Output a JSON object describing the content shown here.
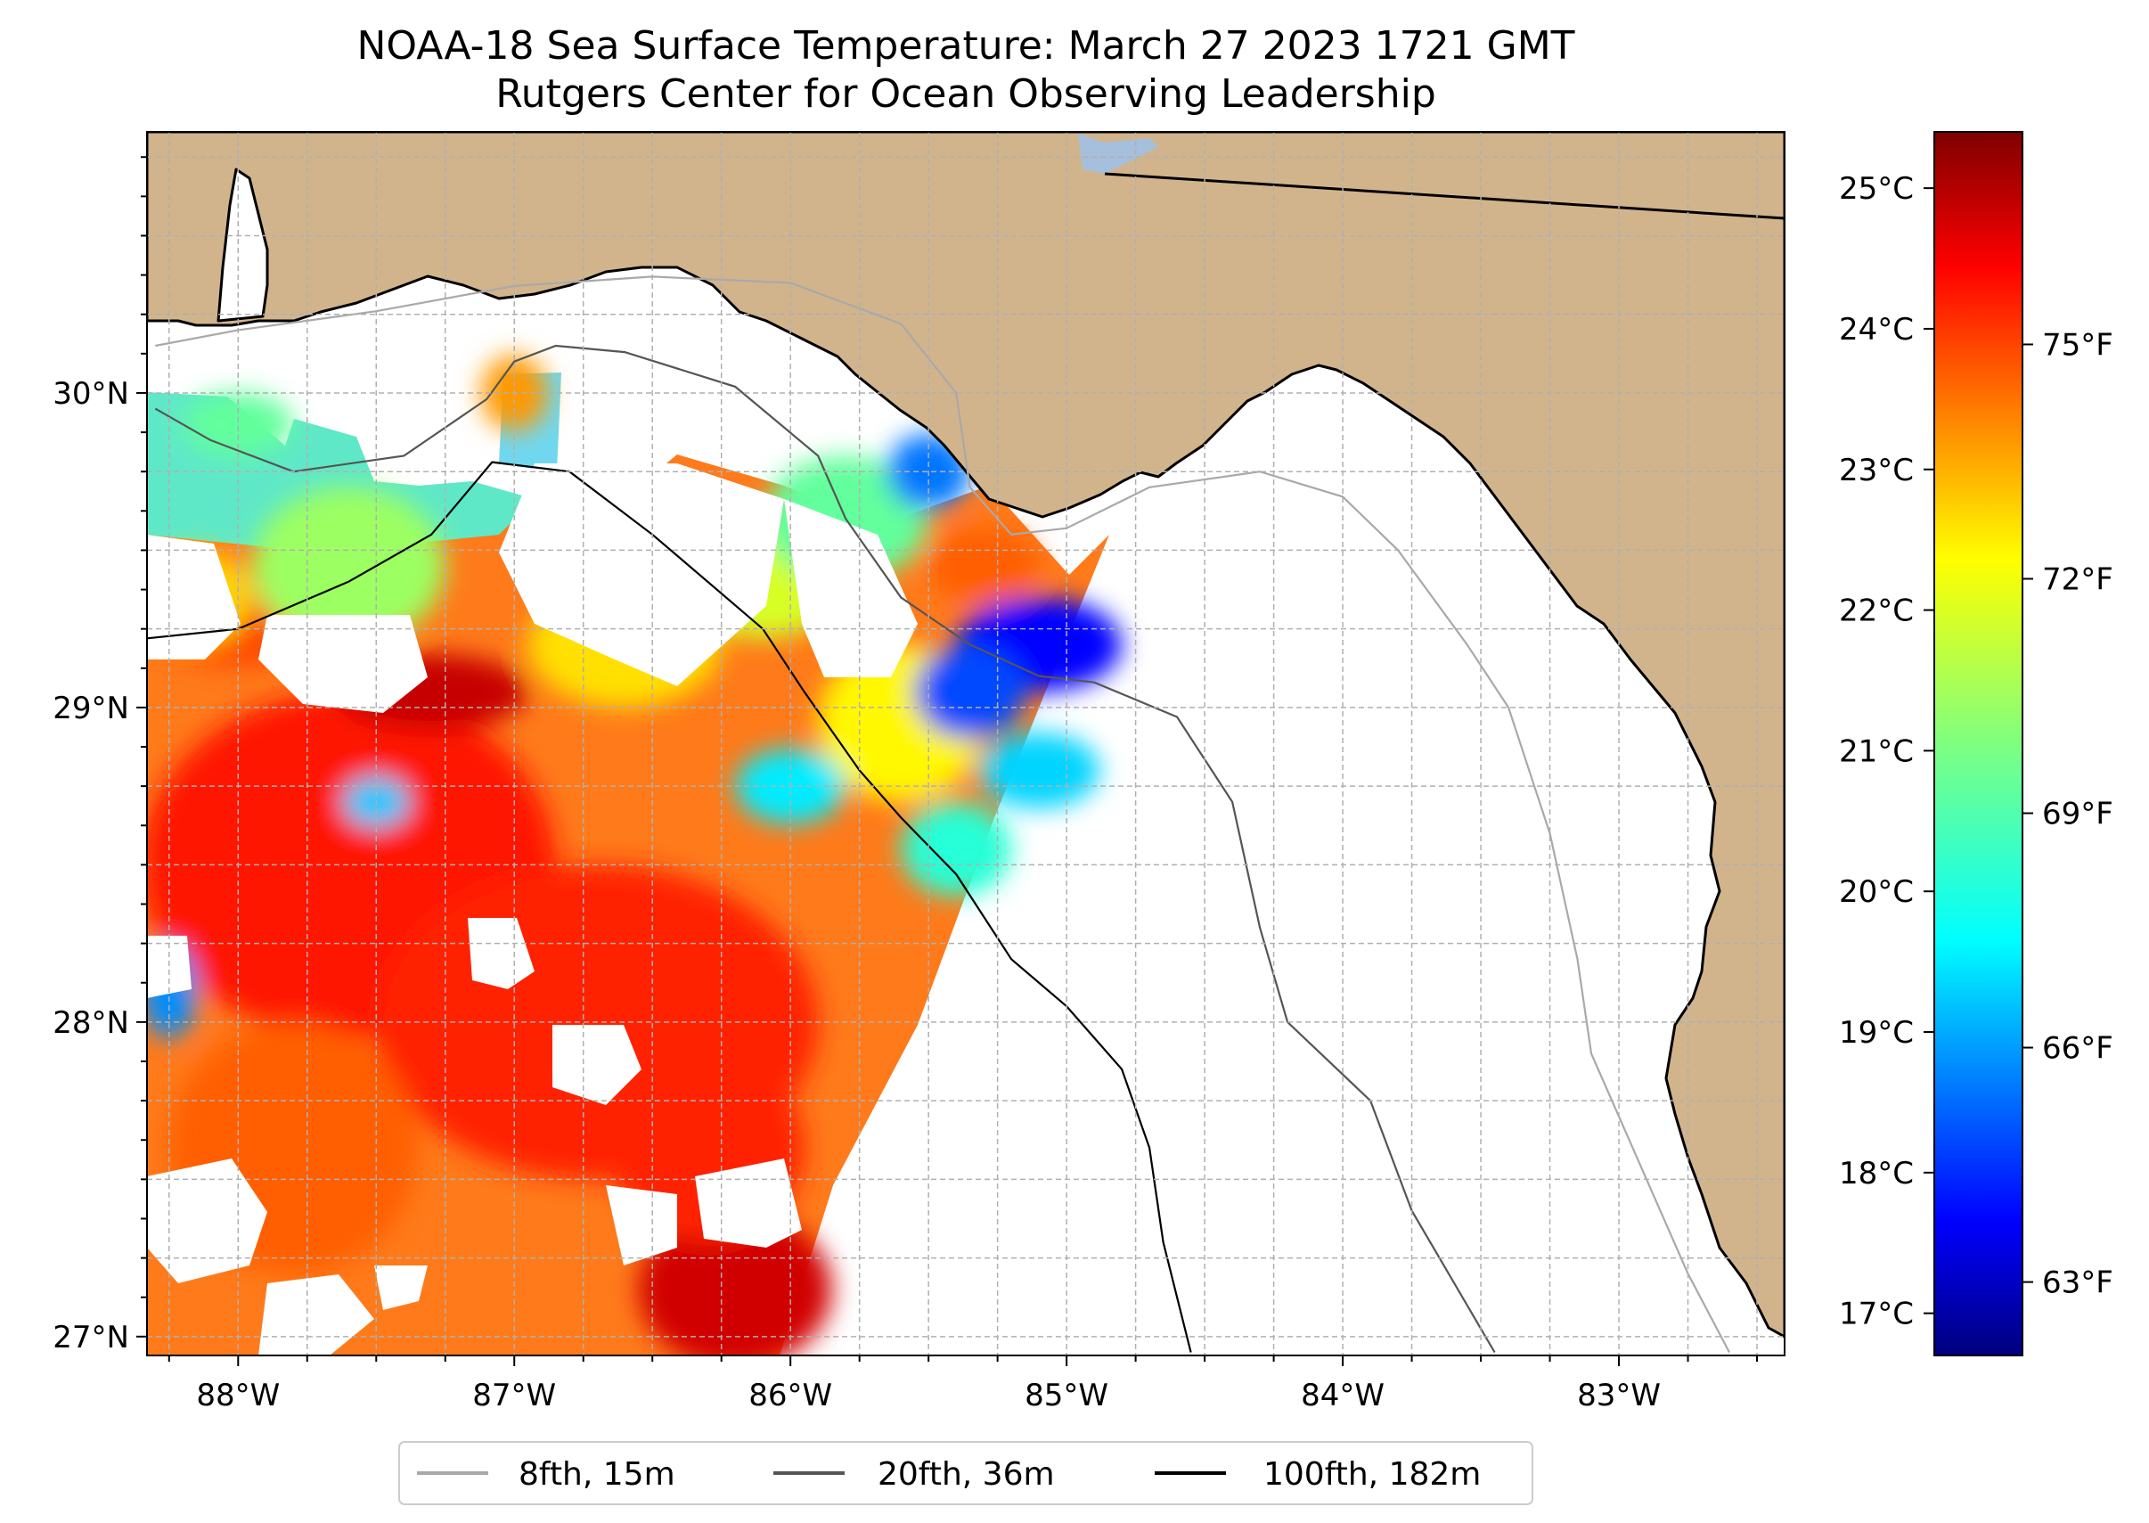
{
  "title": {
    "line1": "NOAA-18 Sea Surface Temperature: March 27 2023 1721 GMT",
    "line2": "Rutgers Center for Ocean Observing Leadership"
  },
  "colors": {
    "land": "#d2b48c",
    "ocean": "#ffffff",
    "lake": "#a5bfdd",
    "grid": "#b0b0b0",
    "isobath_8fth": "#a9a9a9",
    "isobath_20fth": "#555555",
    "isobath_100fth": "#000000",
    "colormap": [
      "#00007f",
      "#0000ff",
      "#007fff",
      "#00ffff",
      "#7fff7f",
      "#ffff00",
      "#ff7f00",
      "#ff0000",
      "#7f0000"
    ]
  },
  "chart_data": {
    "type": "heatmap",
    "title": "NOAA-18 Sea Surface Temperature: March 27 2023 1721 GMT",
    "subtitle": "Rutgers Center for Ocean Observing Leadership",
    "variable": "sea surface temperature",
    "xlim": [
      -88.33,
      -82.4
    ],
    "ylim": [
      26.94,
      30.83
    ],
    "x_ticks": [
      {
        "value": -88,
        "label": "88°W"
      },
      {
        "value": -87,
        "label": "87°W"
      },
      {
        "value": -86,
        "label": "86°W"
      },
      {
        "value": -85,
        "label": "85°W"
      },
      {
        "value": -84,
        "label": "84°W"
      },
      {
        "value": -83,
        "label": "83°W"
      }
    ],
    "y_ticks": [
      {
        "value": 27,
        "label": "27°N"
      },
      {
        "value": 28,
        "label": "28°N"
      },
      {
        "value": 29,
        "label": "29°N"
      },
      {
        "value": 30,
        "label": "30°N"
      }
    ],
    "grid": true,
    "colorbar": {
      "celsius_range": [
        16.7,
        25.4
      ],
      "celsius_ticks": [
        {
          "value": 17,
          "label": "17°C"
        },
        {
          "value": 18,
          "label": "18°C"
        },
        {
          "value": 19,
          "label": "19°C"
        },
        {
          "value": 20,
          "label": "20°C"
        },
        {
          "value": 21,
          "label": "21°C"
        },
        {
          "value": 22,
          "label": "22°C"
        },
        {
          "value": 23,
          "label": "23°C"
        },
        {
          "value": 24,
          "label": "24°C"
        },
        {
          "value": 25,
          "label": "25°C"
        }
      ],
      "fahrenheit_ticks": [
        {
          "value": 63,
          "label": "63°F"
        },
        {
          "value": 66,
          "label": "66°F"
        },
        {
          "value": 69,
          "label": "69°F"
        },
        {
          "value": 72,
          "label": "72°F"
        },
        {
          "value": 75,
          "label": "75°F"
        }
      ]
    },
    "legend": {
      "placement": "bottom-center",
      "entries": [
        {
          "label": "8fth, 15m",
          "color": "#a9a9a9"
        },
        {
          "label": "20fth, 36m",
          "color": "#555555"
        },
        {
          "label": "100fth, 182m",
          "color": "#000000"
        }
      ]
    },
    "isobaths": [
      {
        "name": "8fth, 15m",
        "points": [
          [
            -88.3,
            30.15
          ],
          [
            -88.0,
            30.2
          ],
          [
            -87.5,
            30.26
          ],
          [
            -87.0,
            30.34
          ],
          [
            -86.5,
            30.37
          ],
          [
            -86.0,
            30.35
          ],
          [
            -85.6,
            30.22
          ],
          [
            -85.4,
            30.0
          ],
          [
            -85.35,
            29.7
          ],
          [
            -85.2,
            29.55
          ],
          [
            -85.0,
            29.57
          ],
          [
            -84.7,
            29.7
          ],
          [
            -84.3,
            29.75
          ],
          [
            -84.0,
            29.67
          ],
          [
            -83.8,
            29.5
          ],
          [
            -83.55,
            29.2
          ],
          [
            -83.4,
            29.0
          ],
          [
            -83.25,
            28.6
          ],
          [
            -83.15,
            28.2
          ],
          [
            -83.1,
            27.9
          ],
          [
            -82.9,
            27.5
          ],
          [
            -82.75,
            27.2
          ],
          [
            -82.6,
            26.95
          ]
        ]
      },
      {
        "name": "20fth, 36m",
        "points": [
          [
            -88.3,
            29.95
          ],
          [
            -88.1,
            29.85
          ],
          [
            -87.8,
            29.75
          ],
          [
            -87.4,
            29.8
          ],
          [
            -87.1,
            29.98
          ],
          [
            -87.0,
            30.1
          ],
          [
            -86.85,
            30.15
          ],
          [
            -86.6,
            30.13
          ],
          [
            -86.2,
            30.02
          ],
          [
            -85.9,
            29.8
          ],
          [
            -85.8,
            29.6
          ],
          [
            -85.6,
            29.35
          ],
          [
            -85.35,
            29.2
          ],
          [
            -85.1,
            29.1
          ],
          [
            -84.9,
            29.08
          ],
          [
            -84.6,
            28.97
          ],
          [
            -84.4,
            28.7
          ],
          [
            -84.3,
            28.3
          ],
          [
            -84.2,
            28.0
          ],
          [
            -83.9,
            27.75
          ],
          [
            -83.75,
            27.4
          ],
          [
            -83.55,
            27.1
          ],
          [
            -83.45,
            26.95
          ]
        ]
      },
      {
        "name": "100fth, 182m",
        "points": [
          [
            -88.33,
            29.22
          ],
          [
            -88.0,
            29.25
          ],
          [
            -87.6,
            29.4
          ],
          [
            -87.3,
            29.55
          ],
          [
            -87.08,
            29.78
          ],
          [
            -86.8,
            29.75
          ],
          [
            -86.5,
            29.55
          ],
          [
            -86.3,
            29.4
          ],
          [
            -86.1,
            29.25
          ],
          [
            -85.95,
            29.05
          ],
          [
            -85.75,
            28.8
          ],
          [
            -85.6,
            28.65
          ],
          [
            -85.4,
            28.47
          ],
          [
            -85.2,
            28.2
          ],
          [
            -85.0,
            28.05
          ],
          [
            -84.8,
            27.85
          ],
          [
            -84.7,
            27.6
          ],
          [
            -84.65,
            27.3
          ],
          [
            -84.55,
            26.95
          ]
        ]
      }
    ],
    "sst_field": {
      "units": "°C",
      "blobs": [
        {
          "lon": -87.6,
          "lat": 28.5,
          "rx": 0.75,
          "ry": 0.55,
          "value": 24.1
        },
        {
          "lon": -86.7,
          "lat": 28.0,
          "rx": 0.8,
          "ry": 0.5,
          "value": 24.0
        },
        {
          "lon": -87.8,
          "lat": 27.6,
          "rx": 0.45,
          "ry": 0.4,
          "value": 23.5
        },
        {
          "lon": -86.2,
          "lat": 27.15,
          "rx": 0.35,
          "ry": 0.25,
          "value": 24.7
        },
        {
          "lon": -86.3,
          "lat": 27.6,
          "rx": 0.35,
          "ry": 0.3,
          "value": 24.0
        },
        {
          "lon": -87.3,
          "lat": 29.05,
          "rx": 0.35,
          "ry": 0.12,
          "value": 24.8
        },
        {
          "lon": -88.0,
          "lat": 29.25,
          "rx": 0.3,
          "ry": 0.12,
          "value": 23.7
        },
        {
          "lon": -85.6,
          "lat": 28.95,
          "rx": 0.3,
          "ry": 0.25,
          "value": 22.2
        },
        {
          "lon": -86.6,
          "lat": 29.2,
          "rx": 0.35,
          "ry": 0.2,
          "value": 22.4
        },
        {
          "lon": -86.1,
          "lat": 29.4,
          "rx": 0.3,
          "ry": 0.18,
          "value": 21.8
        },
        {
          "lon": -85.1,
          "lat": 29.2,
          "rx": 0.3,
          "ry": 0.15,
          "value": 17.8
        },
        {
          "lon": -85.35,
          "lat": 29.05,
          "rx": 0.2,
          "ry": 0.15,
          "value": 18.4
        },
        {
          "lon": -85.1,
          "lat": 28.8,
          "rx": 0.22,
          "ry": 0.12,
          "value": 19.6
        },
        {
          "lon": -85.3,
          "lat": 29.45,
          "rx": 0.2,
          "ry": 0.12,
          "value": 23.5
        },
        {
          "lon": -85.8,
          "lat": 29.6,
          "rx": 0.3,
          "ry": 0.2,
          "value": 20.8
        },
        {
          "lon": -87.6,
          "lat": 29.45,
          "rx": 0.35,
          "ry": 0.25,
          "value": 21.3
        },
        {
          "lon": -88.15,
          "lat": 29.35,
          "rx": 0.2,
          "ry": 0.15,
          "value": 22.5
        },
        {
          "lon": -86.0,
          "lat": 28.75,
          "rx": 0.2,
          "ry": 0.12,
          "value": 19.8
        },
        {
          "lon": -85.4,
          "lat": 28.55,
          "rx": 0.2,
          "ry": 0.15,
          "value": 20.3
        },
        {
          "lon": -87.5,
          "lat": 28.7,
          "rx": 0.12,
          "ry": 0.08,
          "value": 19.5
        },
        {
          "lon": -88.25,
          "lat": 28.1,
          "rx": 0.1,
          "ry": 0.15,
          "value": 19.0
        },
        {
          "lon": -88.0,
          "lat": 29.9,
          "rx": 0.2,
          "ry": 0.1,
          "value": 20.8
        },
        {
          "lon": -87.0,
          "lat": 30.0,
          "rx": 0.12,
          "ry": 0.12,
          "value": 23.0
        },
        {
          "lon": -85.5,
          "lat": 29.75,
          "rx": 0.15,
          "ry": 0.12,
          "value": 18.8
        }
      ]
    }
  }
}
